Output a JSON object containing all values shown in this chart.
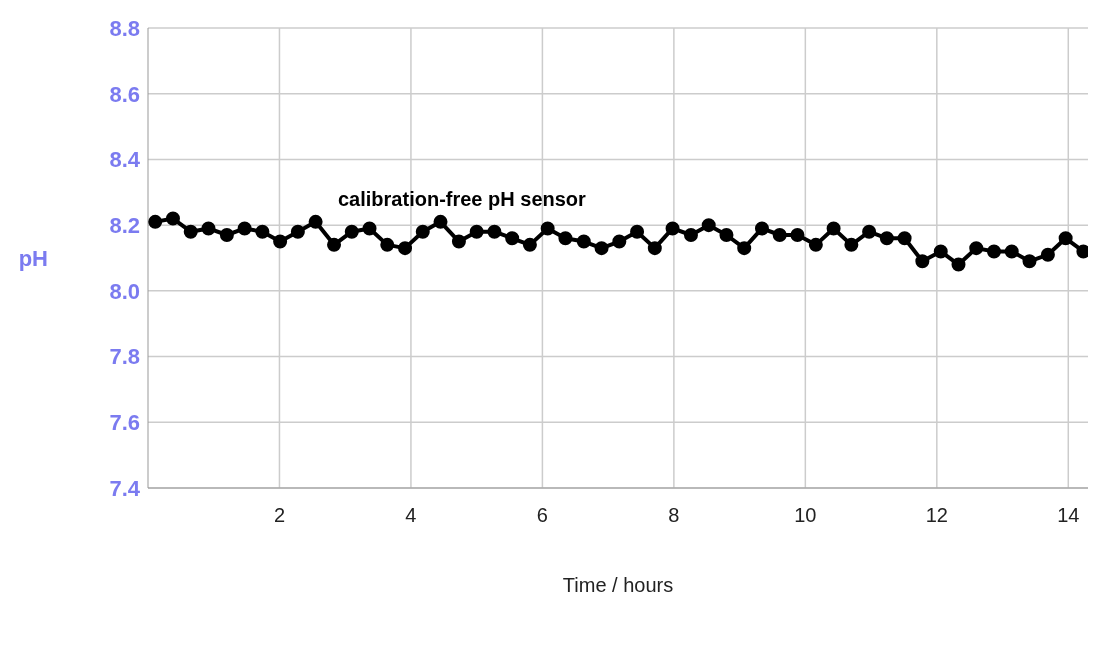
{
  "chart_data": {
    "type": "line",
    "xlabel": "Time / hours",
    "ylabel": "pH",
    "annotations": [
      "calibration-free pH sensor"
    ],
    "x": [
      0.11,
      0.38,
      0.65,
      0.92,
      1.2,
      1.47,
      1.74,
      2.01,
      2.28,
      2.55,
      2.83,
      3.1,
      3.37,
      3.64,
      3.91,
      4.18,
      4.45,
      4.73,
      5.0,
      5.27,
      5.54,
      5.81,
      6.08,
      6.35,
      6.63,
      6.9,
      7.17,
      7.44,
      7.71,
      7.98,
      8.26,
      8.53,
      8.8,
      9.07,
      9.34,
      9.61,
      9.88,
      10.16,
      10.43,
      10.7,
      10.97,
      11.24,
      11.51,
      11.78,
      12.06,
      12.33,
      12.6,
      12.87,
      13.14,
      13.41,
      13.69,
      13.96,
      14.23
    ],
    "series": [
      {
        "color": "#000000",
        "values": [
          8.21,
          8.22,
          8.18,
          8.19,
          8.17,
          8.19,
          8.18,
          8.15,
          8.18,
          8.21,
          8.14,
          8.18,
          8.19,
          8.14,
          8.13,
          8.18,
          8.21,
          8.15,
          8.18,
          8.18,
          8.16,
          8.14,
          8.19,
          8.16,
          8.15,
          8.13,
          8.15,
          8.18,
          8.13,
          8.19,
          8.17,
          8.2,
          8.17,
          8.13,
          8.19,
          8.17,
          8.17,
          8.14,
          8.19,
          8.14,
          8.18,
          8.16,
          8.16,
          8.09,
          8.12,
          8.08,
          8.13,
          8.12,
          8.12,
          8.09,
          8.11,
          8.16,
          8.12
        ]
      }
    ],
    "xlim": [
      0,
      14.3
    ],
    "xticks": [
      2,
      4,
      6,
      8,
      10,
      12,
      14
    ],
    "ylim": [
      7.4,
      8.8
    ],
    "yticks": [
      7.4,
      7.6,
      7.8,
      {
        "value": 8,
        "label": "8.0"
      },
      8.2,
      8.4,
      8.6,
      8.8
    ],
    "grid": true,
    "marker": "circle",
    "line_style": "solid"
  }
}
